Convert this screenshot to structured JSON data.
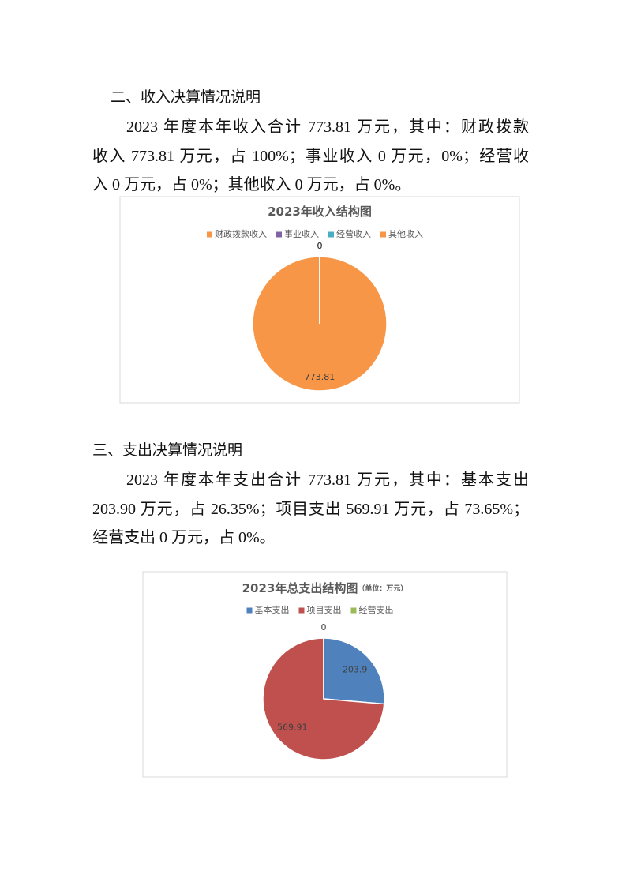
{
  "sections": [
    {
      "heading": "二、收入决算情况说明",
      "lines": [
        "2023 年度本年收入合计 773.81 万元，其中：财政拨款",
        "收入 773.81 万元，占 100%；事业收入 0 万元，0%；经营收",
        "入 0 万元，占 0%；其他收入 0 万元，占 0%。"
      ]
    },
    {
      "heading": "三、支出决算情况说明",
      "lines": [
        "2023 年度本年支出合计 773.81 万元，其中：基本支出",
        "203.90 万元，占 26.35%；项目支出 569.91 万元，占 73.65%；",
        "经营支出 0 万元，占 0%。"
      ]
    }
  ],
  "chart_data": [
    {
      "type": "pie",
      "title": "2023年收入结构图",
      "categories": [
        "财政拨款收入",
        "事业收入",
        "经营收入",
        "其他收入"
      ],
      "values": [
        773.81,
        0,
        0,
        0
      ],
      "colors": [
        "#f79646",
        "#8064a2",
        "#4bacc6",
        "#f79646"
      ],
      "legend": "top"
    },
    {
      "type": "pie",
      "title": "2023年总支出结构图",
      "subtitle": "（单位：万元）",
      "categories": [
        "基本支出",
        "项目支出",
        "经营支出"
      ],
      "values": [
        203.9,
        569.91,
        0
      ],
      "colors": [
        "#4f81bd",
        "#c0504d",
        "#9bbb59"
      ],
      "legend": "top"
    }
  ]
}
